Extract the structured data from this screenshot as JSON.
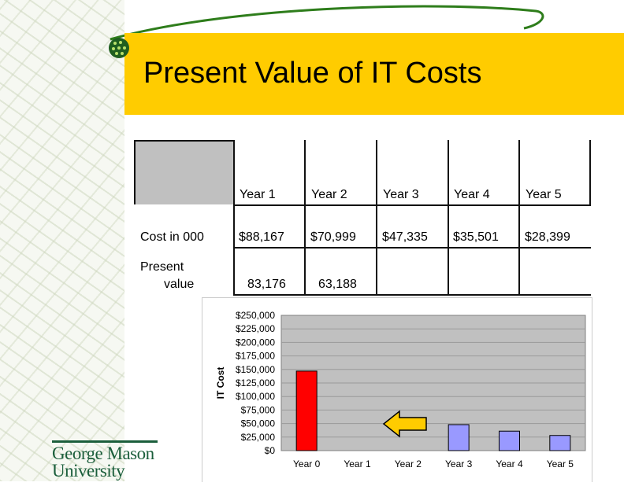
{
  "slide": {
    "title": "Present Value of IT Costs"
  },
  "table": {
    "years": [
      "Year 1",
      "Year 2",
      "Year 3",
      "Year 4",
      "Year 5"
    ],
    "rows": [
      {
        "label": "Cost in 000",
        "values": [
          "$88,167",
          "$70,999",
          "$47,335",
          "$35,501",
          "$28,399"
        ]
      },
      {
        "label_line1": "Present",
        "label_line2": "value",
        "values": [
          "83,176",
          "63,188",
          "",
          "",
          ""
        ]
      }
    ]
  },
  "chart_data": {
    "type": "bar",
    "categories": [
      "Year 0",
      "Year 1",
      "Year 2",
      "Year 3",
      "Year 4",
      "Year 5"
    ],
    "values": [
      147000,
      0,
      0,
      48000,
      36000,
      28000
    ],
    "bar_colors": [
      "#ff0000",
      null,
      null,
      "#9999ff",
      "#9999ff",
      "#9999ff"
    ],
    "ylabel": "IT Cost",
    "ylim": [
      0,
      250000
    ],
    "y_ticks": [
      "$0",
      "$25,000",
      "$50,000",
      "$75,000",
      "$100,000",
      "$125,000",
      "$150,000",
      "$175,000",
      "$200,000",
      "$225,000",
      "$250,000"
    ],
    "plot_background": "#c0c0c0",
    "grid": true,
    "annotation": "left-pointing yellow arrow"
  },
  "logo": {
    "line1": "George Mason",
    "line2": "University"
  },
  "colors": {
    "title_band": "#ffcc00",
    "logo_green": "#1b5e3b"
  }
}
